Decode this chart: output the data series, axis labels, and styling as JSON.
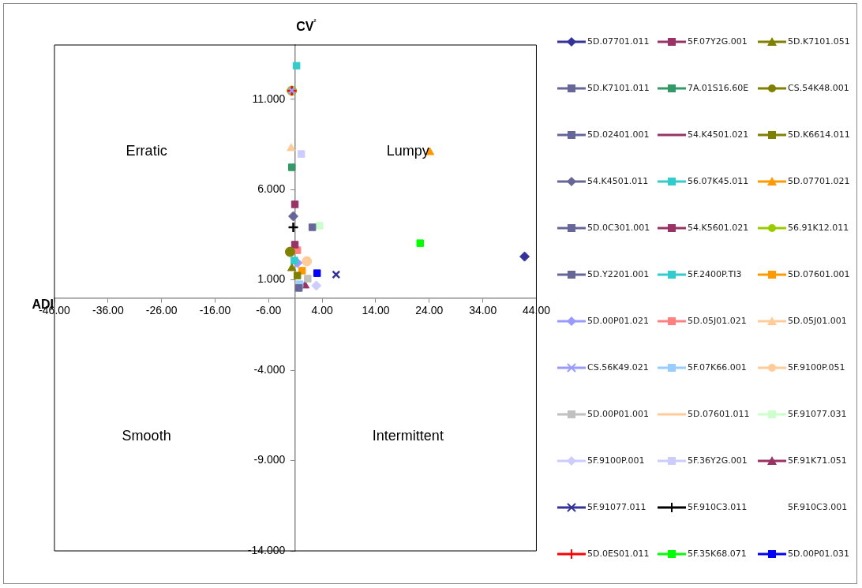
{
  "chart_data": {
    "type": "scatter",
    "xlabel": "ADI",
    "ylabel": "CV²",
    "xlim": [
      -46,
      44
    ],
    "xticks": [
      {
        "value": -46,
        "label": "-46.00"
      },
      {
        "value": -36,
        "label": "-36.00"
      },
      {
        "value": -26,
        "label": "-26.00"
      },
      {
        "value": -16,
        "label": "-16.00"
      },
      {
        "value": -6,
        "label": "-6.00"
      },
      {
        "value": 4,
        "label": "4.00"
      },
      {
        "value": 14,
        "label": "14.00"
      },
      {
        "value": 24,
        "label": "24.00"
      },
      {
        "value": 34,
        "label": "34.00"
      },
      {
        "value": 44,
        "label": "44.00"
      }
    ],
    "ylim": [
      -14,
      14
    ],
    "yticks": [
      {
        "value": -14,
        "label": "-14.000"
      },
      {
        "value": -9,
        "label": "-9.000"
      },
      {
        "value": -4,
        "label": "-4.000"
      },
      {
        "value": 1,
        "label": "1.000"
      },
      {
        "value": 6,
        "label": "6.000"
      },
      {
        "value": 11,
        "label": "11.000"
      }
    ],
    "grid": false,
    "legend": "right",
    "annotations": [
      "Erratic",
      "Lumpy",
      "Smooth",
      "Intermittent"
    ],
    "series": [
      {
        "name": "5D.07701.011",
        "color": "#333399",
        "marker": "diamond",
        "x": [
          41.8
        ],
        "values": [
          2.29
        ]
      },
      {
        "name": "5F.07Y2G.001",
        "color": "#993366",
        "marker": "square",
        "x": [
          -1.1
        ],
        "values": [
          5.18
        ]
      },
      {
        "name": "5D.K7101.051",
        "color": "#808000",
        "marker": "triangle",
        "x": [
          -1.67
        ],
        "values": [
          1.64
        ]
      },
      {
        "name": "5D.K7101.011",
        "color": "#666699",
        "marker": "square",
        "x": [
          2.16
        ],
        "values": [
          3.91
        ]
      },
      {
        "name": "7A.01S16.60E",
        "color": "#339966",
        "marker": "square",
        "x": [
          -1.67
        ],
        "values": [
          7.23
        ]
      },
      {
        "name": "CS.54K48.001",
        "color": "#808000",
        "marker": "circle",
        "x": [
          -2.0
        ],
        "values": [
          2.55
        ]
      },
      {
        "name": "5D.02401.001",
        "color": "#666699",
        "marker": "square",
        "x": [
          -0.35
        ],
        "values": [
          0.55
        ]
      },
      {
        "name": "54.K4501.021",
        "color": "#993366",
        "marker": "none",
        "x": [
          null
        ],
        "values": [
          null
        ]
      },
      {
        "name": "5D.K6614.011",
        "color": "#808000",
        "marker": "square",
        "x": [
          -0.64
        ],
        "values": [
          1.24
        ]
      },
      {
        "name": "54.K4501.011",
        "color": "#666699",
        "marker": "diamond",
        "x": [
          -1.4
        ],
        "values": [
          4.52
        ]
      },
      {
        "name": "56.07K45.011",
        "color": "#33cccc",
        "marker": "square",
        "x": [
          -1.2
        ],
        "values": [
          2.07
        ]
      },
      {
        "name": "5D.07701.021",
        "color": "#ff9900",
        "marker": "triangle",
        "x": [
          24.1
        ],
        "values": [
          8.06
        ]
      },
      {
        "name": "5D.0C301.001",
        "color": "#666699",
        "marker": "square",
        "x": [
          null
        ],
        "values": [
          null
        ]
      },
      {
        "name": "54.K5601.021",
        "color": "#993366",
        "marker": "square",
        "x": [
          -1.1
        ],
        "values": [
          2.95
        ]
      },
      {
        "name": "56.91K12.011",
        "color": "#99cc00",
        "marker": "circle",
        "x": [
          -1.67
        ],
        "values": [
          11.47
        ]
      },
      {
        "name": "5D.Y2201.001",
        "color": "#666699",
        "marker": "square",
        "x": [
          null
        ],
        "values": [
          null
        ]
      },
      {
        "name": "5F.2400P.TI3",
        "color": "#33cccc",
        "marker": "square",
        "x": [
          -0.79
        ],
        "values": [
          12.85
        ]
      },
      {
        "name": "5D.07601.001",
        "color": "#ff9900",
        "marker": "square",
        "x": [
          0.24
        ],
        "values": [
          1.51
        ]
      },
      {
        "name": "5D.00P01.021",
        "color": "#9999ff",
        "marker": "diamond",
        "x": [
          -0.64
        ],
        "values": [
          1.94
        ]
      },
      {
        "name": "5D.05J01.021",
        "color": "#ff8080",
        "marker": "square",
        "x": [
          -0.64
        ],
        "values": [
          2.64
        ]
      },
      {
        "name": "5D.05J01.001",
        "color": "#ffcc99",
        "marker": "triangle",
        "x": [
          -1.8
        ],
        "values": [
          8.28
        ]
      },
      {
        "name": "CS.56K49.021",
        "color": "#9999ff",
        "marker": "x",
        "x": [
          -1.67
        ],
        "values": [
          11.47
        ]
      },
      {
        "name": "5F.07K66.001",
        "color": "#99ccff",
        "marker": "square",
        "x": [
          -0.2
        ],
        "values": [
          0.76
        ]
      },
      {
        "name": "5F.9100P.051",
        "color": "#ffcc99",
        "marker": "circle",
        "x": [
          1.13
        ],
        "values": [
          2.03
        ]
      },
      {
        "name": "5D.00P01.001",
        "color": "#c0c0c0",
        "marker": "square",
        "x": [
          1.3
        ],
        "values": [
          1.07
        ]
      },
      {
        "name": "5D.07601.011",
        "color": "#ffcc99",
        "marker": "none",
        "x": [
          null
        ],
        "values": [
          null
        ]
      },
      {
        "name": "5F.91077.031",
        "color": "#ccffcc",
        "marker": "square",
        "x": [
          3.5
        ],
        "values": [
          4.0
        ]
      },
      {
        "name": "5F.9100P.001",
        "color": "#ccccff",
        "marker": "diamond",
        "x": [
          2.9
        ],
        "values": [
          0.68
        ]
      },
      {
        "name": "5F.36Y2G.001",
        "color": "#ccccff",
        "marker": "square",
        "x": [
          0.1
        ],
        "values": [
          7.97
        ]
      },
      {
        "name": "5F.91K71.051",
        "color": "#993366",
        "marker": "triangle",
        "x": [
          0.8
        ],
        "values": [
          0.68
        ]
      },
      {
        "name": "5F.91077.011",
        "color": "#333399",
        "marker": "x",
        "x": [
          6.6
        ],
        "values": [
          1.29
        ]
      },
      {
        "name": "5F.910C3.011",
        "color": "#000000",
        "marker": "cross",
        "x": [
          -1.4
        ],
        "values": [
          3.91
        ]
      },
      {
        "name": "5F.910C3.001",
        "color": null,
        "marker": "none",
        "x": [
          null
        ],
        "values": [
          null
        ]
      },
      {
        "name": "5D.0ES01.011",
        "color": "#ff0000",
        "marker": "cross",
        "x": [
          -1.67
        ],
        "values": [
          11.47
        ]
      },
      {
        "name": "5F.35K68.071",
        "color": "#00ff00",
        "marker": "square",
        "x": [
          22.3
        ],
        "values": [
          3.03
        ]
      },
      {
        "name": "5D.00P01.031",
        "color": "#0000ff",
        "marker": "square",
        "x": [
          3.05
        ],
        "values": [
          1.37
        ]
      }
    ]
  }
}
